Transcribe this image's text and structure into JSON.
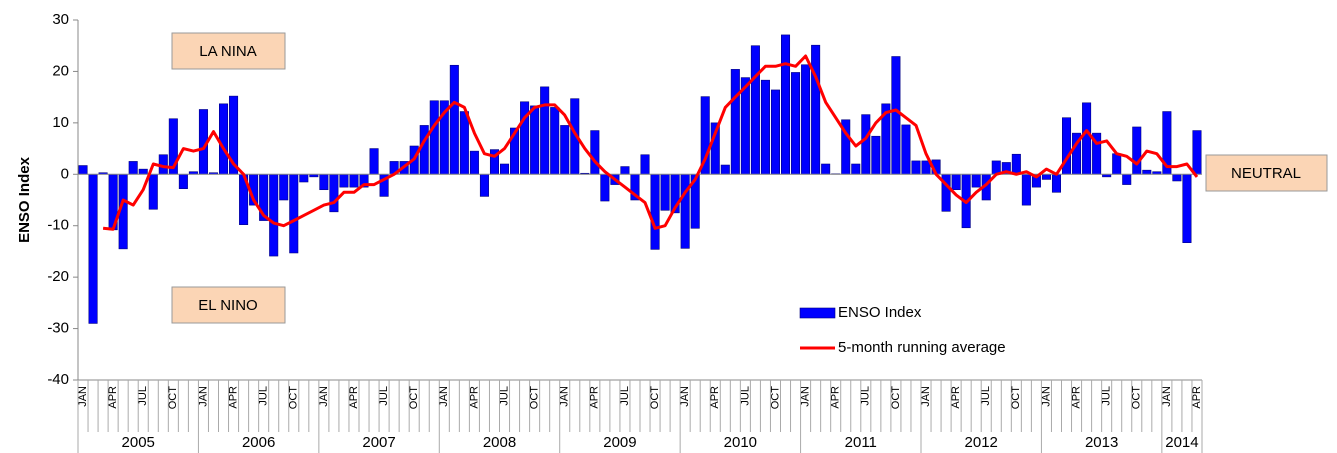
{
  "chart_data": {
    "type": "bar",
    "ylabel": "ENSO Index",
    "annotations": [
      "LA NINA",
      "EL NINO",
      "NEUTRAL"
    ],
    "categories": [
      "JAN",
      null,
      null,
      "APR",
      null,
      null,
      "JUL",
      null,
      null,
      "OCT",
      null,
      null,
      "JAN",
      null,
      null,
      "APR",
      null,
      null,
      "JUL",
      null,
      null,
      "OCT",
      null,
      null,
      "JAN",
      null,
      null,
      "APR",
      null,
      null,
      "JUL",
      null,
      null,
      "OCT",
      null,
      null,
      "JAN",
      null,
      null,
      "APR",
      null,
      null,
      "JUL",
      null,
      null,
      "OCT",
      null,
      null,
      "JAN",
      null,
      null,
      "APR",
      null,
      null,
      "JUL",
      null,
      null,
      "OCT",
      null,
      null,
      "JAN",
      null,
      null,
      "APR",
      null,
      null,
      "JUL",
      null,
      null,
      "OCT",
      null,
      null,
      "JAN",
      null,
      null,
      "APR",
      null,
      null,
      "JUL",
      null,
      null,
      "OCT",
      null,
      null,
      "JAN",
      null,
      null,
      "APR",
      null,
      null,
      "JUL",
      null,
      null,
      "OCT",
      null,
      null,
      "JAN",
      null,
      null,
      "APR",
      null,
      null,
      "JUL",
      null,
      null,
      "OCT",
      null,
      null,
      "JAN",
      null,
      null,
      "APR"
    ],
    "year_labels": [
      "2005",
      "2006",
      "2007",
      "2008",
      "2009",
      "2010",
      "2011",
      "2012",
      "2013",
      "2014"
    ],
    "series": [
      {
        "name": "ENSO Index",
        "color": "#0000ff",
        "values": [
          1.7,
          -29,
          0.3,
          -10.8,
          -14.5,
          2.5,
          1.0,
          -6.8,
          3.8,
          10.8,
          -2.8,
          0.5,
          12.6,
          0.3,
          13.7,
          15.2,
          -9.8,
          -6.0,
          -9.0,
          -15.9,
          -5.0,
          -15.3,
          -1.5,
          -0.5,
          -3.0,
          -7.3,
          -2.5,
          -2.5,
          -2.5,
          5.0,
          -4.3,
          2.5,
          2.5,
          5.5,
          9.5,
          14.3,
          14.3,
          21.2,
          12.2,
          4.5,
          -4.3,
          4.8,
          2.0,
          9.0,
          14.1,
          13.3,
          17.0,
          13.0,
          9.5,
          14.7,
          0.2,
          8.5,
          -5.2,
          -2.0,
          1.5,
          -5.0,
          3.8,
          -14.6,
          -7.0,
          -7.5,
          -14.4,
          -10.5,
          15.1,
          10.0,
          1.8,
          20.4,
          18.8,
          25.0,
          18.3,
          16.4,
          27.1,
          19.8,
          21.3,
          25.1,
          2.0,
          0.1,
          10.6,
          2.0,
          11.6,
          7.4,
          13.7,
          22.9,
          9.6,
          2.6,
          2.6,
          2.8,
          -7.2,
          -3.0,
          -10.4,
          -2.5,
          -5.0,
          2.6,
          2.3,
          3.9,
          -6.0,
          -2.5,
          -1.0,
          -3.5,
          11.0,
          8.0,
          13.9,
          8.0,
          -0.5,
          4.0,
          -2.0,
          9.2,
          0.8,
          0.5,
          12.2,
          -1.3,
          -13.3,
          8.5
        ]
      },
      {
        "name": "5-month running average",
        "color": "#ff0000",
        "type": "line",
        "values": [
          null,
          null,
          -10.5,
          -10.7,
          -5,
          -6,
          -3,
          2,
          1.5,
          1.3,
          5,
          4.5,
          5,
          8.3,
          5,
          2,
          0,
          -5,
          -8,
          -9.5,
          -10,
          -9,
          -8,
          -7,
          -6,
          -5.5,
          -3.5,
          -3.5,
          -2,
          -2,
          -1,
          0,
          1.5,
          3,
          6.5,
          9.5,
          12,
          14,
          13,
          8,
          4,
          3.5,
          5,
          8,
          11,
          13,
          13.5,
          13.5,
          11.5,
          8,
          5,
          2.5,
          0.5,
          -1,
          -2.5,
          -4,
          -5.5,
          -10.5,
          -10,
          -6.5,
          -3.5,
          -1,
          3,
          8,
          13,
          15,
          17,
          19,
          21,
          21,
          21.5,
          21,
          23,
          19,
          14,
          11,
          8,
          5.5,
          7,
          10,
          12,
          12.5,
          11,
          9.5,
          4,
          0,
          -2,
          -4,
          -5.5,
          -3.5,
          -2,
          0,
          0.5,
          0,
          0.5,
          -0.5,
          1,
          0,
          3,
          6,
          8.5,
          6,
          6.5,
          4,
          3.5,
          2,
          4.5,
          4,
          1.5,
          1.5,
          2,
          -0.5
        ]
      }
    ],
    "ylim": [
      -40,
      30
    ],
    "yticks": [
      -40,
      -30,
      -20,
      -10,
      0,
      10,
      20,
      30
    ]
  }
}
